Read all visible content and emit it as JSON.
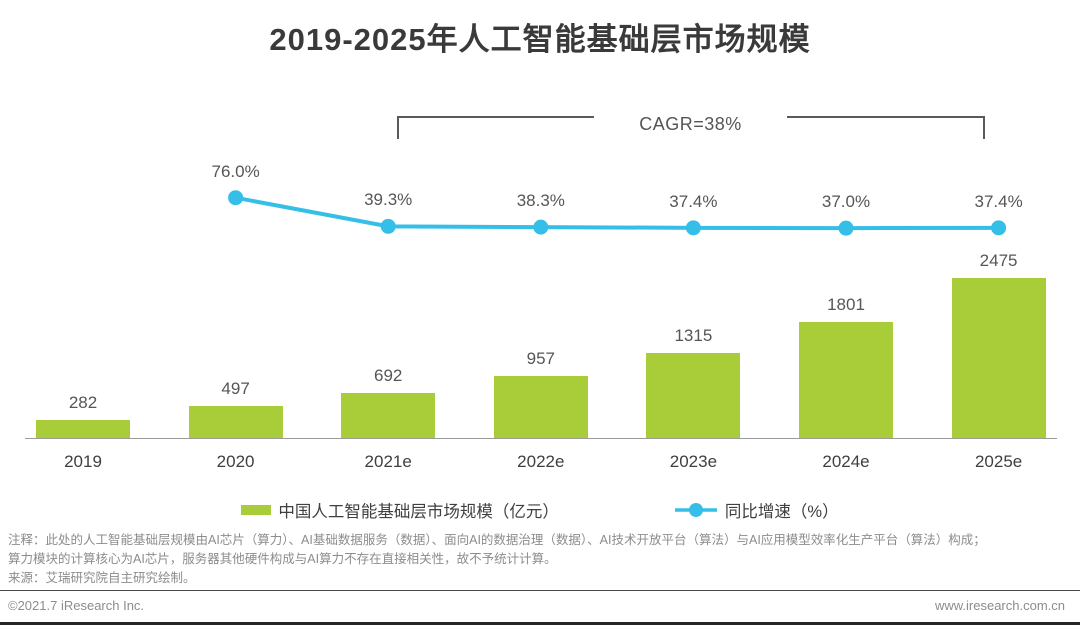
{
  "title": "2019-2025年人工智能基础层市场规模",
  "annotation": {
    "cagr_label": "CAGR=38%"
  },
  "chart_data": {
    "type": "bar+line combo",
    "title": "2019-2025年人工智能基础层市场规模",
    "categories": [
      "2019",
      "2020",
      "2021e",
      "2022e",
      "2023e",
      "2024e",
      "2025e"
    ],
    "series": [
      {
        "name": "中国人工智能基础层市场规模（亿元）",
        "type": "bar",
        "color": "#a9cc39",
        "values": [
          282,
          497,
          692,
          957,
          1315,
          1801,
          2475
        ],
        "labels": [
          "282",
          "497",
          "692",
          "957",
          "1315",
          "1801",
          "2475"
        ]
      },
      {
        "name": "同比增速（%）",
        "type": "line",
        "color": "#35bfe8",
        "start_category": "2020",
        "values": [
          76.0,
          39.3,
          38.3,
          37.4,
          37.0,
          37.4
        ],
        "labels": [
          "76.0%",
          "39.3%",
          "38.3%",
          "37.4%",
          "37.0%",
          "37.4%"
        ]
      }
    ],
    "annotations": [
      "CAGR=38%"
    ],
    "legend_position": "bottom",
    "grid": false,
    "value_axis_visible": false
  },
  "legend": {
    "bar_label": "中国人工智能基础层市场规模（亿元）",
    "line_label": "同比增速（%）"
  },
  "notes": {
    "line1": "注释：此处的人工智能基础层规模由AI芯片（算力）、AI基础数据服务（数据）、面向AI的数据治理（数据）、AI技术开放平台（算法）与AI应用模型效率化生产平台（算法）构成；",
    "line2": "算力模块的计算核心为AI芯片，服务器其他硬件构成与AI算力不存在直接相关性，故不予统计计算。",
    "source": "来源：艾瑞研究院自主研究绘制。"
  },
  "footer": {
    "left": "©2021.7 iResearch Inc.",
    "right": "www.iresearch.com.cn"
  }
}
